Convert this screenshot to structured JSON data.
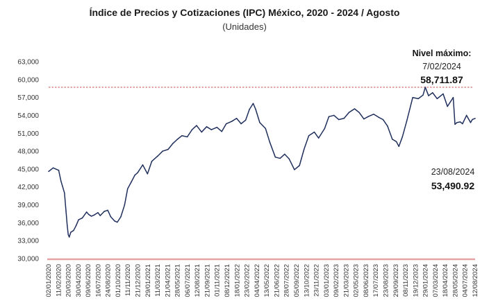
{
  "chart_data": {
    "type": "line",
    "title": "Índice de Precios y Cotizaciones (IPC) México, 2020 - 2024 / Agosto",
    "subtitle": "(Unidades)",
    "xlabel": "",
    "ylabel": "",
    "ylim": [
      30000,
      63000
    ],
    "yticks": [
      "63,000",
      "60,000",
      "57,000",
      "54,000",
      "51,000",
      "48,000",
      "45,000",
      "42,000",
      "39,000",
      "36,000",
      "33,000",
      "30,000"
    ],
    "xticks": [
      "02/01/2020",
      "11/02/2020",
      "20/03/2020",
      "30/04/2020",
      "09/06/2020",
      "16/07/2020",
      "24/08/2020",
      "01/10/2020",
      "11/11/2020",
      "21/12/2020",
      "29/01/2021",
      "11/03/2021",
      "21/04/2021",
      "28/05/2021",
      "06/07/2021",
      "12/08/2021",
      "21/09/2021",
      "01/11/2021",
      "08/12/2021",
      "18/01/2022",
      "23/02/2022",
      "04/04/2022",
      "13/05/2022",
      "21/06/2022",
      "28/07/2022",
      "05/09/2022",
      "13/10/2022",
      "23/11/2022",
      "03/01/2023",
      "09/02/2023",
      "21/03/2023",
      "02/05/2023",
      "08/06/2023",
      "17/07/2023",
      "23/08/2023",
      "29/09/2023",
      "08/11/2023",
      "19/12/2023",
      "29/01/2024",
      "07/03/2024",
      "18/04/2024",
      "28/05/2024",
      "04/07/2024",
      "12/08/2024"
    ],
    "series": [
      {
        "name": "",
        "color": "#1f2f5c",
        "x": [
          "2020-01-02",
          "2020-01-20",
          "2020-02-11",
          "2020-02-20",
          "2020-03-05",
          "2020-03-11",
          "2020-03-16",
          "2020-03-20",
          "2020-03-24",
          "2020-03-30",
          "2020-04-10",
          "2020-04-20",
          "2020-04-30",
          "2020-05-15",
          "2020-06-01",
          "2020-06-09",
          "2020-06-20",
          "2020-07-01",
          "2020-07-16",
          "2020-07-25",
          "2020-08-10",
          "2020-08-24",
          "2020-09-05",
          "2020-09-20",
          "2020-10-01",
          "2020-10-15",
          "2020-10-30",
          "2020-11-11",
          "2020-11-25",
          "2020-12-10",
          "2020-12-21",
          "2021-01-10",
          "2021-01-29",
          "2021-02-15",
          "2021-03-11",
          "2021-03-30",
          "2021-04-21",
          "2021-05-10",
          "2021-05-28",
          "2021-06-15",
          "2021-07-06",
          "2021-07-25",
          "2021-08-12",
          "2021-09-01",
          "2021-09-21",
          "2021-10-10",
          "2021-11-01",
          "2021-11-20",
          "2021-12-08",
          "2021-12-30",
          "2022-01-18",
          "2022-02-05",
          "2022-02-23",
          "2022-03-10",
          "2022-03-25",
          "2022-04-04",
          "2022-04-20",
          "2022-05-13",
          "2022-05-30",
          "2022-06-21",
          "2022-07-10",
          "2022-07-28",
          "2022-08-15",
          "2022-09-05",
          "2022-09-25",
          "2022-10-13",
          "2022-11-01",
          "2022-11-23",
          "2022-12-10",
          "2023-01-03",
          "2023-01-20",
          "2023-02-09",
          "2023-02-28",
          "2023-03-21",
          "2023-04-10",
          "2023-05-02",
          "2023-05-20",
          "2023-06-08",
          "2023-06-25",
          "2023-07-17",
          "2023-08-05",
          "2023-08-23",
          "2023-09-10",
          "2023-09-29",
          "2023-10-15",
          "2023-10-25",
          "2023-11-08",
          "2023-11-25",
          "2023-12-19",
          "2024-01-10",
          "2024-01-29",
          "2024-02-07",
          "2024-02-20",
          "2024-03-07",
          "2024-03-25",
          "2024-04-18",
          "2024-05-05",
          "2024-05-28",
          "2024-06-04",
          "2024-06-12",
          "2024-06-25",
          "2024-07-04",
          "2024-07-20",
          "2024-08-05",
          "2024-08-12",
          "2024-08-23"
        ],
        "y": [
          44600,
          45200,
          44800,
          43000,
          41000,
          38000,
          35500,
          34000,
          33600,
          34400,
          34700,
          35500,
          36500,
          36800,
          37800,
          37400,
          37100,
          37300,
          37700,
          37200,
          37900,
          38100,
          37000,
          36300,
          36100,
          37000,
          39000,
          41700,
          42800,
          44000,
          44400,
          45700,
          44200,
          46300,
          47200,
          48000,
          48300,
          49300,
          50000,
          50600,
          50400,
          51600,
          52300,
          51200,
          52100,
          51600,
          52000,
          51300,
          52600,
          53000,
          53500,
          52600,
          53200,
          55000,
          56000,
          55000,
          52800,
          51800,
          49500,
          47000,
          46800,
          47500,
          46700,
          44900,
          45600,
          48300,
          50600,
          51200,
          50200,
          51800,
          53800,
          54000,
          53300,
          53500,
          54500,
          55100,
          54500,
          53400,
          53800,
          54200,
          53700,
          53300,
          52200,
          50000,
          49600,
          48800,
          50400,
          53000,
          57000,
          56800,
          57400,
          58711.87,
          57300,
          57800,
          56800,
          57600,
          55500,
          57000,
          52500,
          52800,
          52900,
          52600,
          54000,
          52800,
          53300,
          53490.92
        ]
      }
    ],
    "reference_line": {
      "value": 58711.87,
      "color": "#c0504d",
      "style": "dashed"
    },
    "annotations": {
      "max_label": "Nivel máximo:",
      "max_date": "7/02/2024",
      "max_value": "58,711.87",
      "last_date": "23/08/2024",
      "last_value": "53,490.92"
    },
    "axis_line_color": "#e6a3a3",
    "grid": false,
    "legend": "none"
  }
}
